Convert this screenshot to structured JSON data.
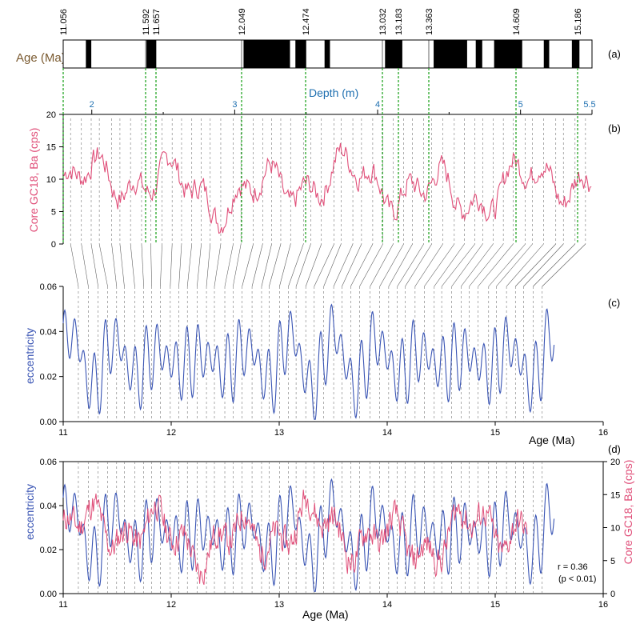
{
  "colors": {
    "ecc": "#3a55b4",
    "ba": "#e0507a",
    "depth": "#1e6fb0",
    "age_band_label": "#7a5a30",
    "tie_green": "#2aa82a"
  },
  "chart_data": [
    {
      "panel": "(a)",
      "type": "polarity-timescale",
      "ylabel": "Age (Ma)",
      "ages": [
        "11.056",
        "11.592",
        "11.657",
        "12.049",
        "12.474",
        "13.032",
        "13.183",
        "13.363",
        "14.609",
        "15.186"
      ],
      "depth_axis": {
        "label": "Depth (m)",
        "ticks": [
          "2",
          "3",
          "4",
          "5",
          "5.5"
        ],
        "tick_values": [
          2,
          3,
          4,
          5,
          5.5
        ],
        "range": [
          1.8,
          5.5
        ]
      },
      "black_bands_ma": [
        [
          11.21,
          11.26
        ],
        [
          11.77,
          11.86
        ],
        [
          12.67,
          13.1
        ],
        [
          13.15,
          13.25
        ],
        [
          13.42,
          13.47
        ],
        [
          13.98,
          14.14
        ],
        [
          14.43,
          14.74
        ],
        [
          14.82,
          14.88
        ],
        [
          14.99,
          15.25
        ],
        [
          15.45,
          15.5
        ],
        [
          15.71,
          15.78
        ]
      ]
    },
    {
      "panel": "(b)",
      "type": "line",
      "ylabel": "Core GC18, Ba (cps)",
      "ylim": [
        0,
        20
      ],
      "yticks": [
        "0",
        "5",
        "10",
        "15",
        "20"
      ],
      "xlabel": "Depth (m)",
      "xlim": [
        1.8,
        5.5
      ]
    },
    {
      "panel": "(c)",
      "type": "line",
      "ylabel": "eccentricity",
      "xlabel": "Age (Ma)",
      "xlim": [
        11,
        16
      ],
      "ylim": [
        0,
        0.06
      ],
      "xticks": [
        "11",
        "12",
        "13",
        "14",
        "15",
        "16"
      ],
      "yticks": [
        "0.00",
        "0.02",
        "0.04",
        "0.06"
      ]
    },
    {
      "panel": "(d)",
      "type": "line",
      "xlabel": "Age (Ma)",
      "xlim": [
        11,
        16
      ],
      "left_axis": {
        "label": "eccentricity",
        "ylim": [
          0,
          0.06
        ],
        "ticks": [
          "0.00",
          "0.02",
          "0.04",
          "0.06"
        ]
      },
      "right_axis": {
        "label": "Core GC18, Ba (cps)",
        "ylim": [
          0,
          20
        ],
        "ticks": [
          "0",
          "5",
          "10",
          "15",
          "20"
        ]
      },
      "series": [
        {
          "name": "eccentricity"
        },
        {
          "name": "Core GC18, Ba (cps)"
        }
      ],
      "annotation_r": "r = 0.36",
      "annotation_p": "(p < 0.01)"
    }
  ]
}
